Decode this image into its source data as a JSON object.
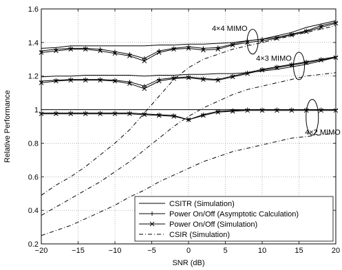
{
  "chart_data": {
    "type": "line",
    "title": "",
    "xlabel": "SNR (dB)",
    "ylabel": "Relative Performance",
    "xlim": [
      -20,
      20
    ],
    "ylim": [
      0.2,
      1.6
    ],
    "xticks": [
      -20,
      -15,
      -10,
      -5,
      0,
      5,
      10,
      15,
      20
    ],
    "yticks": [
      0.2,
      0.4,
      0.6,
      0.8,
      1,
      1.2,
      1.4,
      1.6
    ],
    "grid": true,
    "legend_position": "bottom-center",
    "annotations": [
      {
        "text": "4×4 MIMO",
        "x": 8,
        "y": 1.47
      },
      {
        "text": "4×3 MIMO",
        "x": 14,
        "y": 1.29
      },
      {
        "text": "4×2 MIMO",
        "x": 16,
        "y": 0.85
      }
    ],
    "legend": [
      {
        "label": "CSITR (Simulation)",
        "style": "solid"
      },
      {
        "label": "Power On/Off (Asymptotic Calculation)",
        "style": "plus"
      },
      {
        "label": "Power On/Off (Simulation)",
        "style": "x"
      },
      {
        "label": "CSIR (Simulation)",
        "style": "dashdot"
      }
    ],
    "x": [
      -20,
      -18,
      -16,
      -14,
      -12,
      -10,
      -8,
      -6,
      -4,
      -2,
      0,
      2,
      4,
      6,
      8,
      10,
      12,
      14,
      16,
      18,
      20
    ],
    "series": [
      {
        "group": "4×4 MIMO",
        "style": "solid",
        "values": [
          1.365,
          1.37,
          1.38,
          1.38,
          1.38,
          1.38,
          1.38,
          1.38,
          1.385,
          1.385,
          1.39,
          1.39,
          1.395,
          1.4,
          1.41,
          1.42,
          1.44,
          1.46,
          1.49,
          1.51,
          1.53
        ]
      },
      {
        "group": "4×4 MIMO",
        "style": "plus",
        "values": [
          1.35,
          1.36,
          1.365,
          1.365,
          1.36,
          1.345,
          1.33,
          1.305,
          1.35,
          1.365,
          1.375,
          1.365,
          1.37,
          1.39,
          1.41,
          1.42,
          1.43,
          1.45,
          1.47,
          1.5,
          1.52
        ]
      },
      {
        "group": "4×4 MIMO",
        "style": "x",
        "values": [
          1.34,
          1.35,
          1.36,
          1.36,
          1.35,
          1.335,
          1.32,
          1.29,
          1.34,
          1.36,
          1.365,
          1.355,
          1.36,
          1.385,
          1.4,
          1.41,
          1.425,
          1.445,
          1.465,
          1.49,
          1.515
        ]
      },
      {
        "group": "4×3 MIMO",
        "style": "solid",
        "values": [
          1.195,
          1.2,
          1.2,
          1.205,
          1.205,
          1.205,
          1.205,
          1.2,
          1.205,
          1.205,
          1.21,
          1.21,
          1.215,
          1.215,
          1.22,
          1.23,
          1.24,
          1.255,
          1.27,
          1.29,
          1.31
        ]
      },
      {
        "group": "4×3 MIMO",
        "style": "plus",
        "values": [
          1.17,
          1.175,
          1.18,
          1.18,
          1.18,
          1.175,
          1.165,
          1.14,
          1.18,
          1.19,
          1.195,
          1.185,
          1.18,
          1.2,
          1.22,
          1.24,
          1.255,
          1.27,
          1.285,
          1.3,
          1.315
        ]
      },
      {
        "group": "4×3 MIMO",
        "style": "x",
        "values": [
          1.16,
          1.17,
          1.175,
          1.175,
          1.175,
          1.17,
          1.155,
          1.125,
          1.17,
          1.185,
          1.19,
          1.18,
          1.175,
          1.195,
          1.215,
          1.235,
          1.25,
          1.265,
          1.28,
          1.295,
          1.31
        ]
      },
      {
        "group": "4×2 MIMO",
        "style": "solid",
        "values": [
          1.0,
          1.0,
          1.0,
          1.0,
          1.0,
          1.0,
          1.0,
          1.0,
          1.0,
          1.0,
          1.0,
          1.0,
          1.0,
          1.0,
          1.0,
          1.0,
          1.0,
          1.0,
          1.0,
          1.0,
          1.0
        ]
      },
      {
        "group": "4×2 MIMO",
        "style": "plus",
        "values": [
          0.98,
          0.98,
          0.98,
          0.98,
          0.98,
          0.98,
          0.98,
          0.975,
          0.97,
          0.965,
          0.94,
          0.97,
          0.99,
          0.995,
          1.0,
          1.0,
          1.0,
          1.0,
          1.0,
          1.0,
          1.0
        ]
      },
      {
        "group": "4×2 MIMO",
        "style": "x",
        "values": [
          0.975,
          0.975,
          0.975,
          0.975,
          0.975,
          0.975,
          0.975,
          0.97,
          0.965,
          0.96,
          0.94,
          0.965,
          0.985,
          0.99,
          0.995,
          0.995,
          0.995,
          0.995,
          0.995,
          0.995,
          0.995
        ]
      },
      {
        "group": "4×4 MIMO",
        "style": "dashdot",
        "values": [
          0.49,
          0.55,
          0.6,
          0.66,
          0.73,
          0.8,
          0.88,
          0.98,
          1.08,
          1.18,
          1.25,
          1.3,
          1.33,
          1.36,
          1.38,
          1.4,
          1.42,
          1.44,
          1.46,
          1.48,
          1.5
        ]
      },
      {
        "group": "4×3 MIMO",
        "style": "dashdot",
        "values": [
          0.37,
          0.42,
          0.47,
          0.52,
          0.57,
          0.63,
          0.69,
          0.76,
          0.83,
          0.9,
          0.96,
          1.01,
          1.05,
          1.09,
          1.12,
          1.14,
          1.16,
          1.18,
          1.2,
          1.21,
          1.22
        ]
      },
      {
        "group": "4×2 MIMO",
        "style": "dashdot",
        "values": [
          0.25,
          0.28,
          0.31,
          0.35,
          0.39,
          0.43,
          0.48,
          0.52,
          0.57,
          0.61,
          0.65,
          0.69,
          0.72,
          0.75,
          0.77,
          0.79,
          0.81,
          0.83,
          0.84,
          0.85,
          0.86
        ]
      }
    ]
  }
}
